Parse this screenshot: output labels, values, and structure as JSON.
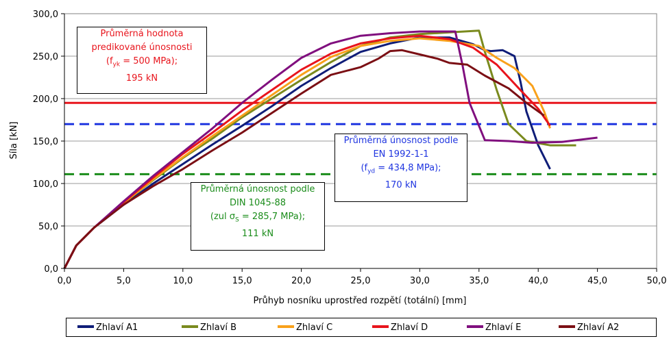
{
  "chart_data": {
    "type": "line",
    "xlabel": "Průhyb nosníku uprostřed rozpětí (totální) [mm]",
    "ylabel": "Síla [kN]",
    "xlim": [
      0,
      50
    ],
    "ylim": [
      0,
      300
    ],
    "x_ticks": [
      "0,0",
      "5,0",
      "10,0",
      "15,0",
      "20,0",
      "25,0",
      "30,0",
      "35,0",
      "40,0",
      "45,0",
      "50,0"
    ],
    "y_ticks": [
      "0,0",
      "50,0",
      "100,0",
      "150,0",
      "200,0",
      "250,0",
      "300,0"
    ],
    "grid": "horizontal",
    "legend_position": "bottom",
    "series": [
      {
        "name": "Zhlaví A1",
        "color": "#0f1d78",
        "points": [
          [
            0,
            0
          ],
          [
            1,
            27
          ],
          [
            2.5,
            48
          ],
          [
            5,
            75
          ],
          [
            7.5,
            100
          ],
          [
            10,
            123
          ],
          [
            12.5,
            146
          ],
          [
            15,
            168
          ],
          [
            17.5,
            191
          ],
          [
            20,
            215
          ],
          [
            22.5,
            236
          ],
          [
            25,
            255
          ],
          [
            27.5,
            265
          ],
          [
            30,
            272
          ],
          [
            32.5,
            272
          ],
          [
            34.5,
            264
          ],
          [
            35.5,
            257
          ],
          [
            36,
            256
          ],
          [
            37,
            257
          ],
          [
            38,
            250
          ],
          [
            38.5,
            220
          ],
          [
            39,
            185
          ],
          [
            40,
            145
          ],
          [
            41,
            117
          ]
        ]
      },
      {
        "name": "Zhlaví B",
        "color": "#7a8a1e",
        "points": [
          [
            0,
            0
          ],
          [
            1,
            27
          ],
          [
            2.5,
            48
          ],
          [
            5,
            77
          ],
          [
            7.5,
            104
          ],
          [
            10,
            130
          ],
          [
            12.5,
            153
          ],
          [
            15,
            178
          ],
          [
            17.5,
            200
          ],
          [
            20,
            222
          ],
          [
            22.5,
            243
          ],
          [
            25,
            262
          ],
          [
            27.5,
            272
          ],
          [
            30,
            276
          ],
          [
            32.5,
            278
          ],
          [
            35,
            280
          ],
          [
            35.5,
            255
          ],
          [
            36.5,
            210
          ],
          [
            37.5,
            170
          ],
          [
            39,
            150
          ],
          [
            41,
            145
          ],
          [
            43.2,
            145
          ]
        ]
      },
      {
        "name": "Zhlaví C",
        "color": "#f9a11b",
        "points": [
          [
            0,
            0
          ],
          [
            1,
            27
          ],
          [
            2.5,
            48
          ],
          [
            5,
            77
          ],
          [
            7.5,
            105
          ],
          [
            10,
            131
          ],
          [
            12.5,
            156
          ],
          [
            15,
            180
          ],
          [
            17.5,
            204
          ],
          [
            20,
            228
          ],
          [
            22.5,
            249
          ],
          [
            25,
            262
          ],
          [
            27.5,
            268
          ],
          [
            30,
            271
          ],
          [
            32.5,
            268
          ],
          [
            35,
            262
          ],
          [
            36.5,
            248
          ],
          [
            38,
            236
          ],
          [
            39.5,
            215
          ],
          [
            40.5,
            185
          ],
          [
            41,
            165
          ]
        ]
      },
      {
        "name": "Zhlaví D",
        "color": "#e8141c",
        "points": [
          [
            0,
            0
          ],
          [
            1,
            27
          ],
          [
            2.5,
            48
          ],
          [
            5,
            78
          ],
          [
            7.5,
            107
          ],
          [
            10,
            135
          ],
          [
            12.5,
            160
          ],
          [
            15,
            186
          ],
          [
            17.5,
            210
          ],
          [
            20,
            234
          ],
          [
            22.5,
            253
          ],
          [
            25,
            265
          ],
          [
            27.5,
            271
          ],
          [
            30,
            274
          ],
          [
            32.5,
            270
          ],
          [
            34.5,
            260
          ],
          [
            36.5,
            240
          ],
          [
            38.5,
            210
          ],
          [
            40,
            188
          ],
          [
            41,
            168
          ]
        ]
      },
      {
        "name": "Zhlaví E",
        "color": "#800f7e",
        "points": [
          [
            0,
            0
          ],
          [
            1,
            27
          ],
          [
            2.5,
            48
          ],
          [
            5,
            79
          ],
          [
            7.5,
            109
          ],
          [
            10,
            137
          ],
          [
            12.5,
            165
          ],
          [
            15,
            195
          ],
          [
            17.5,
            222
          ],
          [
            20,
            248
          ],
          [
            22.5,
            265
          ],
          [
            25,
            274
          ],
          [
            27.5,
            277
          ],
          [
            30,
            279
          ],
          [
            31.5,
            279
          ],
          [
            33,
            279
          ],
          [
            33.6,
            240
          ],
          [
            34.2,
            195
          ],
          [
            35.5,
            151
          ],
          [
            37.5,
            150
          ],
          [
            39.5,
            148
          ],
          [
            42,
            149
          ],
          [
            45,
            154
          ]
        ]
      },
      {
        "name": "Zhlaví A2",
        "color": "#7b0f14",
        "points": [
          [
            0,
            0
          ],
          [
            1,
            27
          ],
          [
            2.5,
            48
          ],
          [
            5,
            75
          ],
          [
            7.5,
            97
          ],
          [
            10,
            117
          ],
          [
            12.5,
            139
          ],
          [
            15,
            160
          ],
          [
            17.5,
            183
          ],
          [
            20,
            206
          ],
          [
            22.5,
            228
          ],
          [
            25,
            237
          ],
          [
            26.5,
            247
          ],
          [
            27.5,
            256
          ],
          [
            28.5,
            257
          ],
          [
            30,
            252
          ],
          [
            31.5,
            247
          ],
          [
            32.5,
            242
          ],
          [
            34,
            240
          ],
          [
            35.5,
            227
          ],
          [
            37.5,
            212
          ],
          [
            39,
            195
          ],
          [
            40.5,
            180
          ]
        ]
      }
    ],
    "reference_lines": [
      {
        "y": 195,
        "color": "#e8141c",
        "style": "solid"
      },
      {
        "y": 170,
        "color": "#1f35e0",
        "style": "dashed"
      },
      {
        "y": 111,
        "color": "#1a8c1a",
        "style": "dashed"
      }
    ]
  },
  "notes": {
    "red": {
      "line1": "Průměrná hodnota",
      "line2": "predikované únosnosti",
      "line3_pre": "(f",
      "line3_sub": "yk",
      "line3_post": " = 500 MPa);",
      "line4": "195 kN",
      "color": "#e8141c"
    },
    "blue": {
      "line1": "Průměrná únosnost podle",
      "line2": "EN 1992-1-1",
      "line3_pre": "(f",
      "line3_sub": "yd",
      "line3_post": " = 434,8 MPa);",
      "line4": "170 kN",
      "color": "#1f35e0"
    },
    "green": {
      "line1": "Průměrná únosnost podle",
      "line2": "DIN 1045-88",
      "line3_pre": "(zul σ",
      "line3_sub": "S",
      "line3_post": " = 285,7 MPa);",
      "line4": "111 kN",
      "color": "#1a8c1a"
    }
  }
}
